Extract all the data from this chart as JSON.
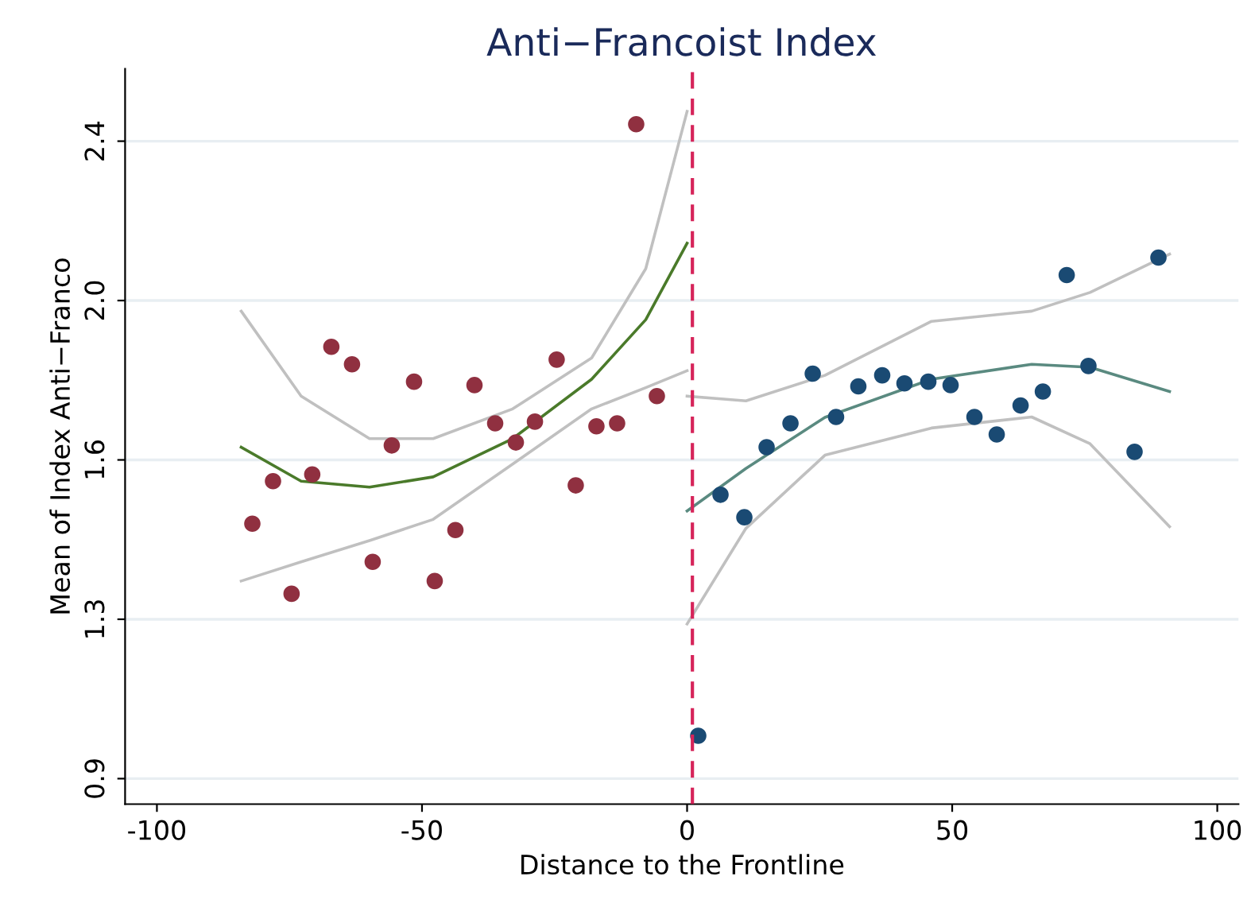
{
  "chart_data": {
    "type": "scatter",
    "title": "Anti−Francoist Index",
    "xlabel": "Distance to the Frontline",
    "ylabel": "Mean of Index Anti−Franco",
    "xlim": [
      -106,
      104
    ],
    "xticks": [
      -100,
      -50,
      0,
      50,
      100
    ],
    "ylim": [
      0.84,
      2.57
    ],
    "yticks": [
      {
        "value": 0.9,
        "label": "0.9"
      },
      {
        "value": 1.275,
        "label": "1.3"
      },
      {
        "value": 1.65,
        "label": "1.6"
      },
      {
        "value": 2.025,
        "label": "2.0"
      },
      {
        "value": 2.4,
        "label": "2.4"
      }
    ],
    "grid": "y",
    "marker": "circle",
    "ref_lines": [
      {
        "axis": "x",
        "value": 1,
        "color": "#d6245a",
        "line_style": "dashed"
      }
    ],
    "series": [
      {
        "type": "line",
        "marker": "none",
        "color": "#c0c0c0",
        "x": [
          -84.1,
          -72.8,
          -59.9,
          -47.9,
          -32.9,
          -18.0,
          -7.8,
          0
        ],
        "values": [
          1.365,
          1.41,
          1.46,
          1.51,
          1.64,
          1.77,
          1.82,
          1.86
        ]
      },
      {
        "type": "line",
        "marker": "none",
        "color": "#c0c0c0",
        "x": [
          -84.1,
          -72.8,
          -59.9,
          -47.9,
          -32.9,
          -18.0,
          -7.8,
          0
        ],
        "values": [
          2.0,
          1.8,
          1.7,
          1.7,
          1.77,
          1.89,
          2.1,
          2.47
        ]
      },
      {
        "type": "line",
        "marker": "none",
        "color": "#4a7a2a",
        "x": [
          -84.1,
          -72.8,
          -59.9,
          -47.9,
          -32.9,
          -18.0,
          -7.8,
          0
        ],
        "values": [
          1.68,
          1.6,
          1.586,
          1.61,
          1.7,
          1.84,
          1.98,
          2.16
        ]
      },
      {
        "type": "line",
        "marker": "none",
        "color": "#c0c0c0",
        "x": [
          0,
          11.1,
          26.0,
          46.1,
          65.0,
          76.0,
          91.0
        ],
        "values": [
          1.264,
          1.489,
          1.661,
          1.725,
          1.751,
          1.688,
          1.493
        ]
      },
      {
        "type": "line",
        "marker": "none",
        "color": "#c0c0c0",
        "x": [
          0,
          11.1,
          26.0,
          46.1,
          65.0,
          76.0,
          91.0
        ],
        "values": [
          1.8,
          1.789,
          1.849,
          1.976,
          2.0,
          2.044,
          2.134
        ]
      },
      {
        "type": "line",
        "marker": "none",
        "color": "#5a8a80",
        "x": [
          0,
          11.1,
          26.0,
          46.1,
          65.0,
          76.0,
          91.0
        ],
        "values": [
          1.53,
          1.63,
          1.75,
          1.84,
          1.875,
          1.868,
          1.811
        ]
      },
      {
        "color": "#903040",
        "x": [
          -82.0,
          -78.1,
          -74.6,
          -70.7,
          -67.1,
          -63.2,
          -59.3,
          -55.7,
          -51.5,
          -47.6,
          -43.7,
          -40.1,
          -36.2,
          -32.3,
          -28.7,
          -24.6,
          -21.0,
          -17.1,
          -13.2,
          -9.6,
          -5.7
        ],
        "values": [
          1.5,
          1.6,
          1.335,
          1.616,
          1.916,
          1.875,
          1.41,
          1.684,
          1.834,
          1.365,
          1.485,
          1.826,
          1.736,
          1.691,
          1.74,
          1.886,
          1.59,
          1.729,
          1.736,
          2.44,
          1.8
        ]
      },
      {
        "color": "#1a4a73",
        "x": [
          2.1,
          6.3,
          10.8,
          15.0,
          19.5,
          23.7,
          28.1,
          32.3,
          36.8,
          41.0,
          45.5,
          49.7,
          54.2,
          58.4,
          62.9,
          67.1,
          71.6,
          75.7,
          84.4,
          88.9
        ],
        "values": [
          1.001,
          1.568,
          1.515,
          1.68,
          1.736,
          1.853,
          1.751,
          1.823,
          1.849,
          1.83,
          1.834,
          1.826,
          1.751,
          1.71,
          1.778,
          1.811,
          2.085,
          1.871,
          1.669,
          2.126
        ]
      }
    ]
  }
}
